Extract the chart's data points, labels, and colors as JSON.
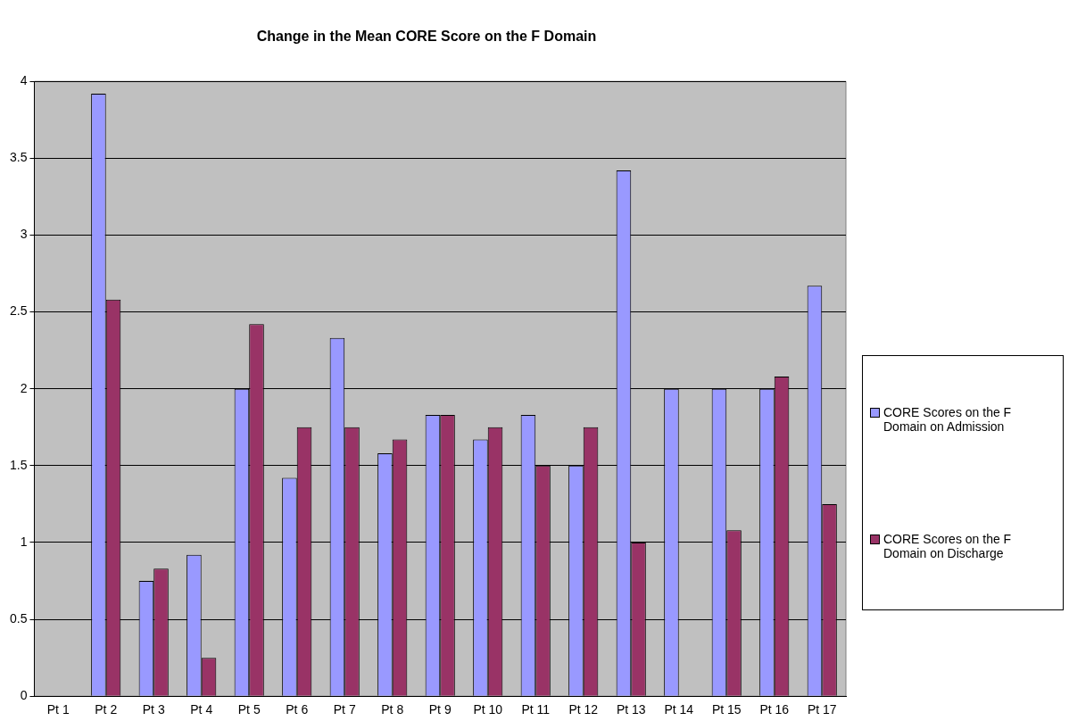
{
  "chart_data": {
    "type": "bar",
    "title": "Change in the Mean CORE Score on the F Domain",
    "categories": [
      "Pt 1",
      "Pt 2",
      "Pt 3",
      "Pt 4",
      "Pt 5",
      "Pt 6",
      "Pt 7",
      "Pt 8",
      "Pt 9",
      "Pt 10",
      "Pt 11",
      "Pt 12",
      "Pt 13",
      "Pt 14",
      "Pt 15",
      "Pt 16",
      "Pt 17"
    ],
    "series": [
      {
        "name": "CORE Scores on the F Domain on Admission",
        "color": "#9999ff",
        "values": [
          null,
          3.92,
          0.75,
          0.92,
          2.0,
          1.42,
          2.33,
          1.58,
          1.83,
          1.67,
          1.83,
          1.5,
          3.42,
          2.0,
          2.0,
          2.0,
          2.67
        ]
      },
      {
        "name": "CORE Scores on the F Domain on Discharge",
        "color": "#993366",
        "values": [
          null,
          2.58,
          0.83,
          0.25,
          2.42,
          1.75,
          1.75,
          1.67,
          1.83,
          1.75,
          1.5,
          1.75,
          1.0,
          null,
          1.08,
          2.08,
          1.25
        ]
      }
    ],
    "ylim": [
      0,
      4
    ],
    "yticks": [
      0,
      0.5,
      1,
      1.5,
      2,
      2.5,
      3,
      3.5,
      4
    ],
    "grid": "y",
    "legend": "right"
  }
}
